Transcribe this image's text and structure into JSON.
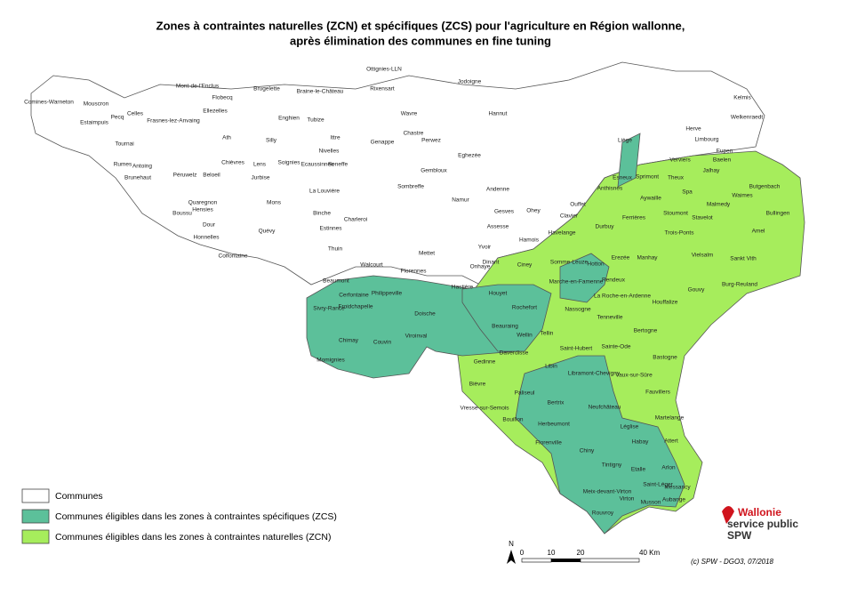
{
  "title": {
    "line1": "Zones à contraintes naturelles (ZCN) et spécifiques (ZCS) pour l'agriculture en Région wallonne,",
    "line2": "après élimination des communes en fine tuning"
  },
  "legend": [
    {
      "label": "Communes",
      "color": "#ffffff"
    },
    {
      "label": "Communes éligibles dans les zones à contraintes spécifiques (ZCS)",
      "color": "#5cc09a"
    },
    {
      "label": "Communes éligibles dans les zones à contraintes naturelles (ZCN)",
      "color": "#a6ed5c"
    }
  ],
  "scale": {
    "north": "N",
    "ticks": [
      "0",
      "10",
      "20",
      "40 Km"
    ]
  },
  "credit": "(c) SPW - DGO3, 07/2018",
  "logo": {
    "line1": "Wallonie",
    "line2": "service public",
    "line3": "SPW"
  },
  "communes": [
    "Comines-Warneton",
    "Mouscron",
    "Estaimpuis",
    "Pecq",
    "Celles",
    "Frasnes-lez-Anvaing",
    "Mont-de-l'Enclus",
    "Flobecq",
    "Ellezelles",
    "Brugelette",
    "Tournai",
    "Ath",
    "Antoing",
    "Rumes",
    "Brunehaut",
    "Péruwelz",
    "Beloeil",
    "Chièvres",
    "Lens",
    "Jurbise",
    "Soignies",
    "Silly",
    "Enghien",
    "Braine-le-Château",
    "Tubize",
    "Ittre",
    "Nivelles",
    "Ecaussinnes",
    "Seneffe",
    "Mons",
    "Quaregnon",
    "Boussu",
    "Dour",
    "Quévy",
    "Honnelles",
    "Colfontaine",
    "Binche",
    "Estinnes",
    "Thuin",
    "La Louvière",
    "Charleroi",
    "Rixensart",
    "Wavre",
    "Genappe",
    "Chastre",
    "Perwez",
    "Gembloux",
    "Sombreffe",
    "Namur",
    "Eghezée",
    "Jodoigne",
    "Hannut",
    "Andenne",
    "Ohey",
    "Gesves",
    "Assesse",
    "Hamois",
    "Havelange",
    "Ciney",
    "Dinant",
    "Yvoir",
    "Onhaye",
    "Hastière",
    "Philippeville",
    "Cerfontaine",
    "Doische",
    "Sivry-Rance",
    "Froidchapelle",
    "Chimay",
    "Couvin",
    "Viroinval",
    "Momignies",
    "Walcourt",
    "Florennes",
    "Mettet",
    "Beaumont",
    "Houyet",
    "Rochefort",
    "Beauraing",
    "Marche-en-Famenne",
    "Hotton",
    "Somme-Leuze",
    "Durbuy",
    "Erezée",
    "Manhay",
    "Rendeux",
    "Nassogne",
    "Tenneville",
    "La Roche-en-Ardenne",
    "Houffalize",
    "Gouvy",
    "Vielsalm",
    "Trois-Ponts",
    "Stavelot",
    "Stoumont",
    "Malmedy",
    "Waimes",
    "Butgenbach",
    "Bullingen",
    "Amel",
    "Sankt Vith",
    "Burg-Reuland",
    "Spa",
    "Jalhay",
    "Theux",
    "Aywaille",
    "Sprimont",
    "Ferrières",
    "Esneux",
    "Anthisnes",
    "Ouffet",
    "Clavier",
    "Liège",
    "Herve",
    "Eupen",
    "Welkenraedt",
    "Kelmis",
    "Baelen",
    "Limbourg",
    "Verviers",
    "Libin",
    "Wellin",
    "Tellin",
    "Daverdisse",
    "Gedinne",
    "Bièvre",
    "Paliseul",
    "Bertrix",
    "Bouillon",
    "Vresse-sur-Semois",
    "Herbeumont",
    "Neufchâteau",
    "Libramont-Chevigny",
    "Saint-Hubert",
    "Sainte-Ode",
    "Bertogne",
    "Bastogne",
    "Vaux-sur-Sûre",
    "Fauvillers",
    "Léglise",
    "Martelange",
    "Habay",
    "Attert",
    "Florenville",
    "Chiny",
    "Tintigny",
    "Etalle",
    "Arlon",
    "Meix-devant-Virton",
    "Virton",
    "Saint-Léger",
    "Messancy",
    "Musson",
    "Aubange",
    "Rouvroy",
    "Hensies",
    "Ottignies-LLN"
  ]
}
